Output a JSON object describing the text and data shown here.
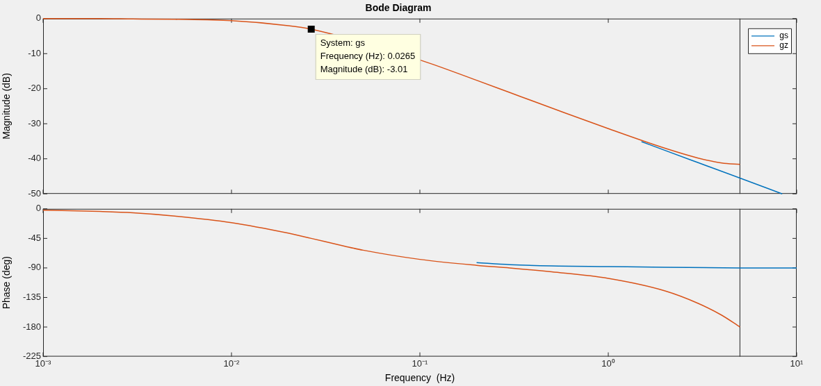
{
  "chart_data": [
    {
      "type": "line",
      "title": "Bode Diagram",
      "ylabel": "Magnitude (dB)",
      "log": "x",
      "xlim": [
        0.001,
        10
      ],
      "xticks": [
        {
          "value": 0.001,
          "label": null
        },
        {
          "value": 0.01,
          "label": null
        },
        {
          "value": 0.1,
          "label": null
        },
        {
          "value": 1,
          "label": null
        },
        {
          "value": 10,
          "label": null
        }
      ],
      "ylim": [
        -50,
        0
      ],
      "yticks": [
        -50,
        -40,
        -30,
        -20,
        -10,
        0
      ],
      "tick_labels": "y",
      "legend": "top right",
      "marker": "none",
      "line_style": "solid",
      "series": [
        {
          "name": "gs",
          "color": "#0072bd",
          "x": [
            1.5,
            2,
            3,
            5,
            8.38
          ],
          "values": [
            -35.1,
            -37.6,
            -41.1,
            -45.5,
            -50
          ]
        },
        {
          "name": "gz",
          "color": "#d95319",
          "x": [
            0.001,
            0.002,
            0.003,
            0.005,
            0.01,
            0.02,
            0.0265,
            0.1,
            0.2,
            0.3,
            0.5,
            1,
            2,
            3,
            4,
            5
          ],
          "values": [
            0,
            0,
            -0.1,
            -0.2,
            -0.6,
            -2,
            -3,
            -11.8,
            -17.6,
            -21.1,
            -25.5,
            -31.4,
            -37,
            -39.8,
            -41.2,
            -41.6
          ]
        }
      ],
      "ref_lines": [
        {
          "axis": "x",
          "value": 5,
          "color": "#404040"
        }
      ],
      "annotations": [
        {
          "text": "System: gs\nFrequency (Hz): 0.0265\nMagnitude (dB): -3.01",
          "x": 0.0265,
          "y": -3.01
        }
      ]
    },
    {
      "type": "line",
      "xlabel": "Frequency  (Hz)",
      "ylabel": "Phase (deg)",
      "log": "x",
      "xlim": [
        0.001,
        10
      ],
      "xticks": [
        {
          "value": 0.001,
          "label": "10⁻³"
        },
        {
          "value": 0.01,
          "label": "10⁻²"
        },
        {
          "value": 0.1,
          "label": "10⁻¹"
        },
        {
          "value": 1,
          "label": "10⁰"
        },
        {
          "value": 10,
          "label": "10¹"
        }
      ],
      "ylim": [
        -225,
        0
      ],
      "yticks": [
        -225,
        -180,
        -135,
        -90,
        -45,
        0
      ],
      "marker": "none",
      "line_style": "solid",
      "series": [
        {
          "color": "#0072bd",
          "x": [
            0.2,
            0.3,
            0.5,
            1,
            2,
            5,
            10
          ],
          "values": [
            -82,
            -85,
            -87,
            -88,
            -89,
            -90,
            -90
          ]
        },
        {
          "color": "#d95319",
          "x": [
            0.001,
            0.002,
            0.003,
            0.005,
            0.01,
            0.02,
            0.0265,
            0.04,
            0.05,
            0.1,
            0.2,
            0.3,
            0.5,
            1,
            2,
            3,
            4,
            5
          ],
          "values": [
            -2,
            -4,
            -6,
            -11,
            -21,
            -37,
            -45,
            -57,
            -63,
            -77,
            -86,
            -90,
            -96,
            -106,
            -125,
            -144,
            -162,
            -180
          ]
        }
      ],
      "ref_lines": [
        {
          "axis": "x",
          "value": 5,
          "color": "#404040"
        }
      ]
    }
  ]
}
